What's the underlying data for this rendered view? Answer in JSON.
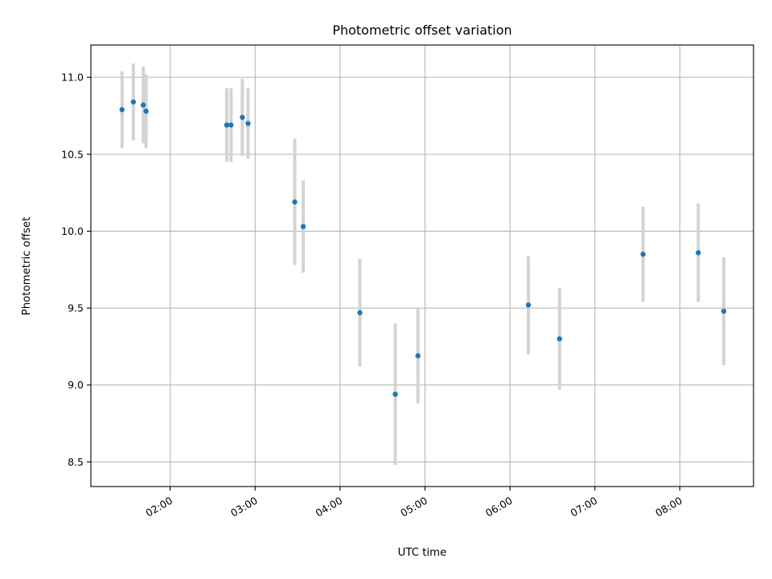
{
  "chart_data": {
    "type": "scatter",
    "title": "Photometric offset variation",
    "xlabel": "UTC time",
    "ylabel": "Photometric offset",
    "x_ticks": [
      "02:00",
      "03:00",
      "04:00",
      "05:00",
      "06:00",
      "07:00",
      "08:00"
    ],
    "y_ticks": [
      "8.5",
      "9.0",
      "9.5",
      "10.0",
      "10.5",
      "11.0"
    ],
    "xlim": [
      "01:04",
      "08:52"
    ],
    "ylim": [
      8.34,
      11.21
    ],
    "grid": true,
    "colors": {
      "marker": "#1f77b4",
      "errorbar": "#d3d3d3"
    },
    "points": [
      {
        "x": "01:26",
        "y": 10.79,
        "err": 0.25
      },
      {
        "x": "01:34",
        "y": 10.84,
        "err": 0.25
      },
      {
        "x": "01:41",
        "y": 10.82,
        "err": 0.25
      },
      {
        "x": "01:43",
        "y": 10.78,
        "err": 0.24
      },
      {
        "x": "02:40",
        "y": 10.69,
        "err": 0.24
      },
      {
        "x": "02:43",
        "y": 10.69,
        "err": 0.24
      },
      {
        "x": "02:51",
        "y": 10.74,
        "err": 0.25
      },
      {
        "x": "02:55",
        "y": 10.7,
        "err": 0.23
      },
      {
        "x": "03:28",
        "y": 10.19,
        "err": 0.41
      },
      {
        "x": "03:34",
        "y": 10.03,
        "err": 0.3
      },
      {
        "x": "04:14",
        "y": 9.47,
        "err": 0.35
      },
      {
        "x": "04:39",
        "y": 8.94,
        "err": 0.46
      },
      {
        "x": "04:55",
        "y": 9.19,
        "err": 0.31
      },
      {
        "x": "06:13",
        "y": 9.52,
        "err": 0.32
      },
      {
        "x": "06:35",
        "y": 9.3,
        "err": 0.33
      },
      {
        "x": "07:34",
        "y": 9.85,
        "err": 0.31
      },
      {
        "x": "08:13",
        "y": 9.86,
        "err": 0.32
      },
      {
        "x": "08:31",
        "y": 9.48,
        "err": 0.35
      }
    ]
  }
}
